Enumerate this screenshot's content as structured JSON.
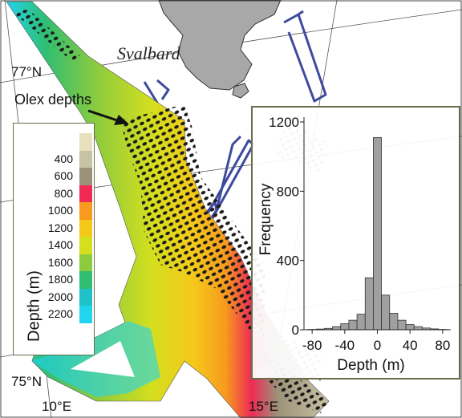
{
  "map": {
    "place_label": "Svalbard",
    "annotation": "Olex depths",
    "lat_labels": [
      "77°N",
      "75°N"
    ],
    "lon_labels": [
      "10°E",
      "15°E"
    ],
    "colors": {
      "land": "#a8a8a8",
      "tracks": "#3d4a9e",
      "olex_points": "#1a1a1a",
      "frame": "#6b6b4a"
    }
  },
  "legend": {
    "title": "Depth (m)",
    "labels": [
      "400",
      "600",
      "800",
      "1000",
      "1200",
      "1400",
      "1600",
      "1800",
      "2000",
      "2200"
    ],
    "colors": [
      "#e8e0bc",
      "#c8c2a4",
      "#9c9278",
      "#ee2a55",
      "#f79a1e",
      "#f5c91a",
      "#d4df1e",
      "#8ccb3e",
      "#2fbe73",
      "#1fc2c9",
      "#22d4ee"
    ]
  },
  "chart_data": {
    "type": "bar",
    "xlabel": "Depth (m)",
    "ylabel": "Frequency",
    "xlim": [
      -90,
      90
    ],
    "ylim": [
      0,
      1200
    ],
    "xticks": [
      -80,
      -40,
      0,
      40,
      80
    ],
    "yticks": [
      0,
      400,
      800,
      1200
    ],
    "bin_width": 10,
    "bins": [
      -80,
      -70,
      -60,
      -50,
      -40,
      -30,
      -20,
      -10,
      0,
      10,
      20,
      30,
      40,
      50,
      60,
      70,
      80
    ],
    "values": [
      2,
      4,
      8,
      18,
      35,
      55,
      90,
      300,
      1110,
      200,
      95,
      55,
      30,
      18,
      10,
      5,
      2
    ],
    "bar_color": "#a0a0a0"
  }
}
